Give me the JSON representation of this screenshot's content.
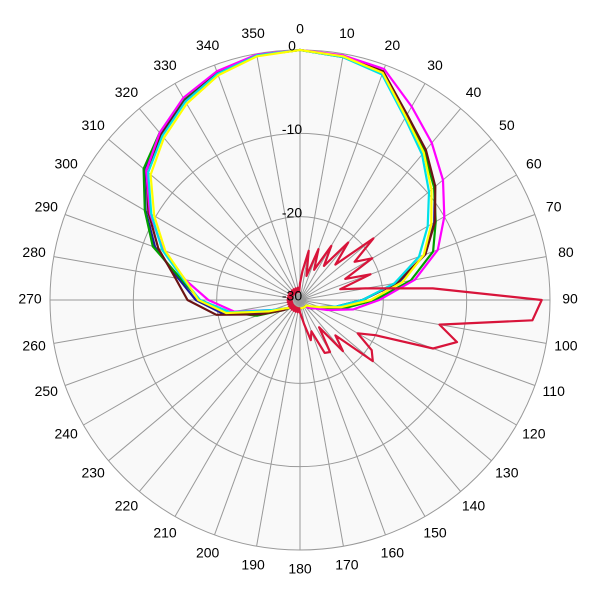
{
  "chart_data": {
    "type": "polar",
    "direction": "clockwise",
    "zero_location": "top",
    "rlim": [
      -30,
      0
    ],
    "rticks": [
      -30,
      -20,
      -10,
      0
    ],
    "thetaticks": [
      0,
      10,
      20,
      30,
      40,
      50,
      60,
      70,
      80,
      90,
      100,
      110,
      120,
      130,
      140,
      150,
      160,
      170,
      180,
      190,
      200,
      210,
      220,
      230,
      240,
      250,
      260,
      270,
      280,
      290,
      300,
      310,
      320,
      330,
      340,
      350
    ],
    "grid": true,
    "theta": [
      0,
      10,
      20,
      30,
      40,
      50,
      60,
      70,
      80,
      90,
      100,
      110,
      120,
      130,
      140,
      150,
      160,
      170,
      180,
      190,
      200,
      210,
      220,
      230,
      240,
      250,
      260,
      270,
      280,
      290,
      300,
      310,
      320,
      330,
      340,
      350
    ],
    "series": [
      {
        "color": "#1a1a9c",
        "values": [
          0,
          -0.3,
          -0.9,
          -4.4,
          -6.6,
          -8.9,
          -11.4,
          -14,
          -18,
          -22.5,
          -25.5,
          -27.5,
          -28,
          -28.5,
          -29,
          -29,
          -29,
          -29,
          -29,
          -29,
          -29,
          -29,
          -29,
          -28.5,
          -27.5,
          -25.5,
          -20.6,
          -17.5,
          -15.2,
          -11.5,
          -8.6,
          -5.6,
          -3.9,
          -2.2,
          -1,
          -0.2
        ]
      },
      {
        "color": "#00a000",
        "values": [
          0,
          -0.4,
          -1,
          -4.5,
          -6.8,
          -9,
          -11.2,
          -13,
          -16.5,
          -21,
          -24.5,
          -27,
          -28,
          -28.5,
          -29,
          -29,
          -29,
          -29,
          -29,
          -29,
          -29,
          -29,
          -29,
          -28.5,
          -27.5,
          -24.5,
          -21.5,
          -18,
          -15.5,
          -11.2,
          -8.5,
          -5.5,
          -3.8,
          -2.1,
          -0.9,
          -0.2
        ]
      },
      {
        "color": "#6b1414",
        "values": [
          0,
          -0.3,
          -0.8,
          -4.3,
          -6.5,
          -8.8,
          -11.3,
          -14,
          -18.2,
          -22.5,
          -25.5,
          -27.5,
          -28,
          -28.5,
          -29,
          -29,
          -29,
          -29,
          -29,
          -29,
          -29,
          -29,
          -29,
          -28.5,
          -27.5,
          -25,
          -19.8,
          -16.5,
          -14.8,
          -11.9,
          -9,
          -5.9,
          -4.1,
          -2.4,
          -1,
          -0.2
        ]
      },
      {
        "color": "#ff00ff",
        "values": [
          0,
          -0.2,
          -0.5,
          -3.2,
          -5.4,
          -7.6,
          -10,
          -12.4,
          -16,
          -20.5,
          -23.5,
          -26.5,
          -28,
          -28.5,
          -29,
          -29,
          -29,
          -29,
          -29,
          -29,
          -29,
          -29,
          -29,
          -28.5,
          -28,
          -26.5,
          -22,
          -19,
          -16,
          -12.5,
          -9.2,
          -5.9,
          -3.8,
          -2,
          -0.8,
          -0.1
        ]
      },
      {
        "color": "#00e0e8",
        "values": [
          0,
          -0.4,
          -1.2,
          -4.8,
          -7.2,
          -9.8,
          -12.3,
          -14.8,
          -18.5,
          -22.5,
          -25.5,
          -27.5,
          -28.5,
          -29,
          -29,
          -29,
          -29,
          -29,
          -29,
          -29,
          -29,
          -29,
          -29,
          -28.5,
          -28,
          -26.5,
          -21.5,
          -18,
          -15.8,
          -12.4,
          -9.4,
          -6.2,
          -4.3,
          -2.5,
          -1.1,
          -0.2
        ]
      },
      {
        "color": "#ffff00",
        "values": [
          0,
          -0.3,
          -1,
          -4.6,
          -6.9,
          -9.4,
          -11.8,
          -14.2,
          -17.5,
          -21.5,
          -25,
          -27.5,
          -28.5,
          -29,
          -29,
          -29,
          -29,
          -29,
          -29,
          -29,
          -29,
          -29,
          -29,
          -28.5,
          -28,
          -26,
          -21,
          -17.8,
          -16,
          -12.8,
          -9.8,
          -6.6,
          -4.6,
          -2.8,
          -1.3,
          -0.3
        ]
      },
      {
        "color": "#d8143a",
        "theta": [
          0,
          5,
          10,
          15,
          20,
          25,
          30,
          35,
          40,
          45,
          50,
          55,
          60,
          65,
          70,
          75,
          80,
          85,
          90,
          95,
          100,
          105,
          110,
          115,
          120,
          125,
          130,
          135,
          140,
          145,
          150,
          155,
          160,
          165,
          170,
          175,
          180,
          185,
          190,
          195,
          200,
          205,
          210,
          215,
          220,
          225,
          230,
          235,
          240,
          245,
          250,
          255,
          260,
          265,
          270,
          275,
          280,
          285,
          290,
          295,
          300,
          305,
          310,
          315,
          320,
          325,
          330,
          335,
          340,
          345,
          350,
          355
        ],
        "values": [
          -28,
          -26.5,
          -24,
          -27,
          -23.5,
          -26,
          -22.5,
          -25,
          -21,
          -24,
          -18.5,
          -22,
          -20,
          -24,
          -21,
          -25,
          -22,
          -14,
          -1,
          -2,
          -13,
          -10.5,
          -13,
          -20,
          -22,
          -19.5,
          -18.6,
          -24,
          -22,
          -26,
          -22.8,
          -23,
          -26,
          -25,
          -27,
          -28,
          -28.5,
          -29,
          -28.5,
          -29,
          -28.5,
          -29,
          -28.5,
          -29,
          -28.5,
          -29,
          -28.5,
          -29,
          -28.5,
          -29,
          -28.5,
          -29,
          -28.5,
          -29,
          -28.5,
          -29,
          -28.5,
          -29,
          -28.5,
          -29,
          -28.5,
          -29,
          -28.5,
          -29,
          -28.5,
          -29,
          -28.5,
          -29,
          -28.5,
          -29,
          -28.5,
          -29
        ]
      }
    ]
  }
}
